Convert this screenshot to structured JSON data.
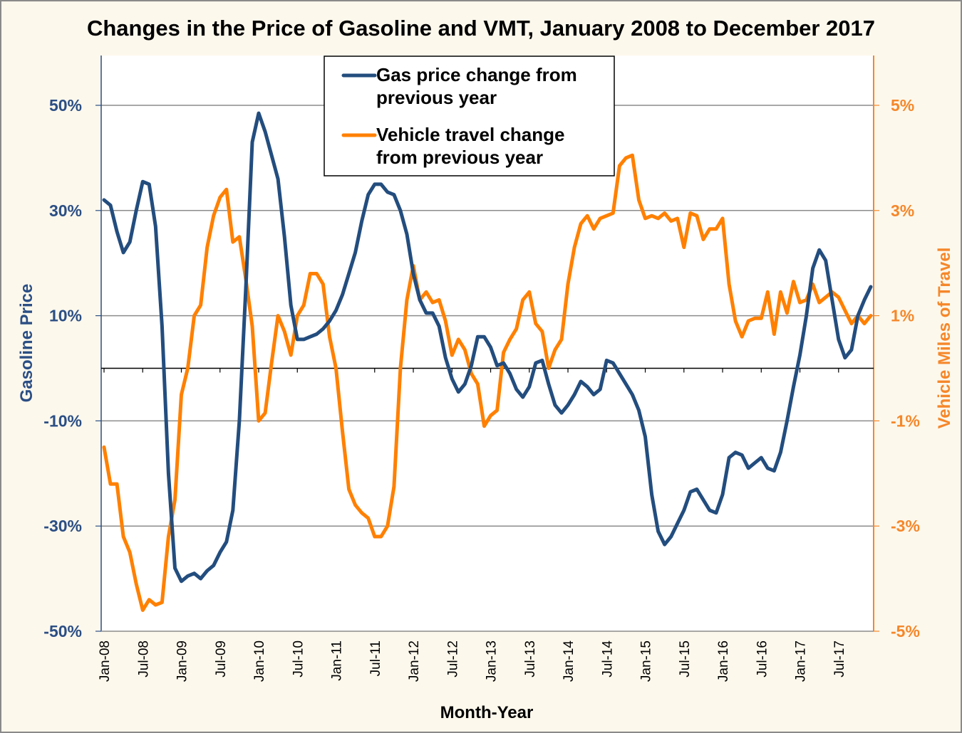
{
  "chart_data": {
    "type": "line",
    "title": "Changes in the Price of Gasoline and VMT, January 2008 to December 2017",
    "xlabel": "Month-Year",
    "ylabel_left": "Gasoline Price",
    "ylabel_right": "Vehicle Miles of Travel",
    "ylim_left": [
      -50,
      50
    ],
    "ylim_right": [
      -5,
      5
    ],
    "yticks_left": [
      "50%",
      "30%",
      "10%",
      "-10%",
      "-30%",
      "-50%"
    ],
    "yticks_left_values": [
      50,
      30,
      10,
      -10,
      -30,
      -50
    ],
    "yticks_right": [
      "5%",
      "3%",
      "1%",
      "-1%",
      "-3%",
      "-5%"
    ],
    "yticks_right_values": [
      5,
      3,
      1,
      -1,
      -3,
      -5
    ],
    "xticks": [
      "Jan-08",
      "Jul-08",
      "Jan-09",
      "Jul-09",
      "Jan-10",
      "Jul-10",
      "Jan-11",
      "Jul-11",
      "Jan-12",
      "Jul-12",
      "Jan-13",
      "Jul-13",
      "Jan-14",
      "Jul-14",
      "Jan-15",
      "Jul-15",
      "Jan-16",
      "Jul-16",
      "Jan-17",
      "Jul-17"
    ],
    "xtick_month_index": [
      0,
      6,
      12,
      18,
      24,
      30,
      36,
      42,
      48,
      54,
      60,
      66,
      72,
      78,
      84,
      90,
      96,
      102,
      108,
      114
    ],
    "month_count": 120,
    "grid": true,
    "legend_position": "top-center",
    "colors": {
      "gas": "#234d7e",
      "vmt": "#ff8000",
      "left_axis": "#2b4e84",
      "right_axis": "#f5872a",
      "grid": "#8c8c8c",
      "background": "#fdf8ec"
    },
    "series": [
      {
        "name": "Gas price change from previous year",
        "legend_lines": [
          "Gas price change from",
          "previous year"
        ],
        "axis": "left",
        "unit": "%",
        "values": [
          32,
          31,
          26,
          22,
          24,
          30,
          35.5,
          35,
          27,
          8,
          -20,
          -38,
          -40.5,
          -39.5,
          -39,
          -40,
          -38.5,
          -37.5,
          -35,
          -33,
          -27,
          -10,
          15,
          43,
          48.5,
          45,
          40.5,
          36,
          25,
          12,
          5.5,
          5.5,
          6,
          6.5,
          7.5,
          9,
          11,
          14,
          18,
          22,
          28,
          33,
          35,
          35,
          33.5,
          33,
          30,
          25.5,
          18,
          13,
          10.5,
          10.5,
          8,
          2,
          -2,
          -4.5,
          -3,
          0.5,
          6,
          6,
          4,
          0.5,
          1,
          -1,
          -4,
          -5.5,
          -3.5,
          1,
          1.5,
          -3,
          -7,
          -8.5,
          -7,
          -5,
          -2.5,
          -3.5,
          -5,
          -4,
          1.5,
          1,
          -1,
          -3,
          -5,
          -8,
          -13,
          -24,
          -31,
          -33.5,
          -32,
          -29.5,
          -27,
          -23.5,
          -23,
          -25,
          -27,
          -27.5,
          -24,
          -17,
          -16,
          -16.5,
          -19,
          -18,
          -17,
          -19,
          -19.5,
          -16,
          -10,
          -3.5,
          2.5,
          10,
          19,
          22.5,
          20.5,
          13,
          5.5,
          2,
          3.5,
          10,
          13,
          15.5
        ]
      },
      {
        "name": "Vehicle travel change from previous year",
        "legend_lines": [
          "Vehicle travel change",
          "from previous year"
        ],
        "axis": "right",
        "unit": "%",
        "values": [
          -1.5,
          -2.2,
          -2.2,
          -3.2,
          -3.5,
          -4.1,
          -4.6,
          -4.4,
          -4.5,
          -4.45,
          -3.2,
          -2.5,
          -0.5,
          0,
          1,
          1.2,
          2.3,
          2.9,
          3.25,
          3.4,
          2.4,
          2.5,
          1.7,
          0.8,
          -1,
          -0.85,
          0.1,
          1,
          0.7,
          0.25,
          1,
          1.2,
          1.8,
          1.8,
          1.6,
          0.6,
          0,
          -1.2,
          -2.3,
          -2.6,
          -2.75,
          -2.85,
          -3.2,
          -3.2,
          -3,
          -2.25,
          0,
          1.3,
          1.95,
          1.3,
          1.45,
          1.25,
          1.3,
          0.9,
          0.25,
          0.55,
          0.35,
          -0.1,
          -0.3,
          -1.1,
          -0.9,
          -0.8,
          0.3,
          0.55,
          0.75,
          1.3,
          1.45,
          0.85,
          0.7,
          0,
          0.35,
          0.55,
          1.6,
          2.3,
          2.75,
          2.9,
          2.65,
          2.85,
          2.9,
          2.95,
          3.85,
          4.0,
          4.05,
          3.2,
          2.85,
          2.9,
          2.85,
          2.95,
          2.8,
          2.85,
          2.3,
          2.95,
          2.9,
          2.45,
          2.65,
          2.65,
          2.85,
          1.6,
          0.9,
          0.6,
          0.9,
          0.95,
          0.95,
          1.45,
          0.65,
          1.45,
          1.05,
          1.65,
          1.25,
          1.3,
          1.6,
          1.25,
          1.35,
          1.45,
          1.35,
          1.1,
          0.85,
          1.0,
          0.85,
          1.0
        ]
      }
    ]
  }
}
